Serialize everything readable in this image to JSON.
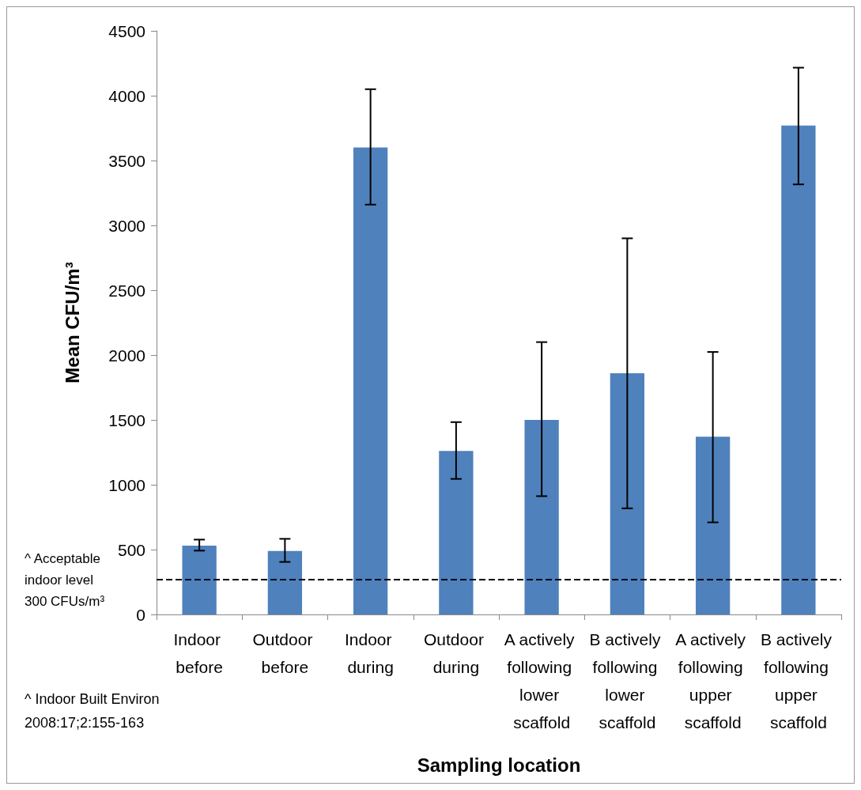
{
  "chart_data": {
    "type": "bar",
    "xlabel": "Sampling location",
    "ylabel": "Mean CFU/m³",
    "categories": [
      "Indoor before",
      "Outdoor before",
      "Indoor during",
      "Outdoor during",
      "A actively following lower scaffold",
      "B actively following lower scaffold",
      "A actively following upper scaffold",
      "B actively following upper scaffold"
    ],
    "values": [
      530,
      490,
      3600,
      1260,
      1500,
      1860,
      1370,
      3770
    ],
    "errors": [
      [
        492,
        577
      ],
      [
        405,
        583
      ],
      [
        3160,
        4050
      ],
      [
        1045,
        1483
      ],
      [
        912,
        2100
      ],
      [
        818,
        2900
      ],
      [
        710,
        2024
      ],
      [
        3316,
        4216
      ]
    ],
    "color": "#4f81bd",
    "ylim": [
      0,
      4500
    ],
    "yticks": [
      0,
      500,
      1000,
      1500,
      2000,
      2500,
      3000,
      3500,
      4000,
      4500
    ],
    "grid": false,
    "ref_lines": [
      {
        "axis": "y",
        "value": 270,
        "label": "^ Acceptable indoor level 300 CFUs/m³",
        "color": "#000000",
        "line_style": "dashed"
      }
    ],
    "annotations": [
      "^ Indoor Built Environ 2008:17;2:155-163"
    ]
  }
}
